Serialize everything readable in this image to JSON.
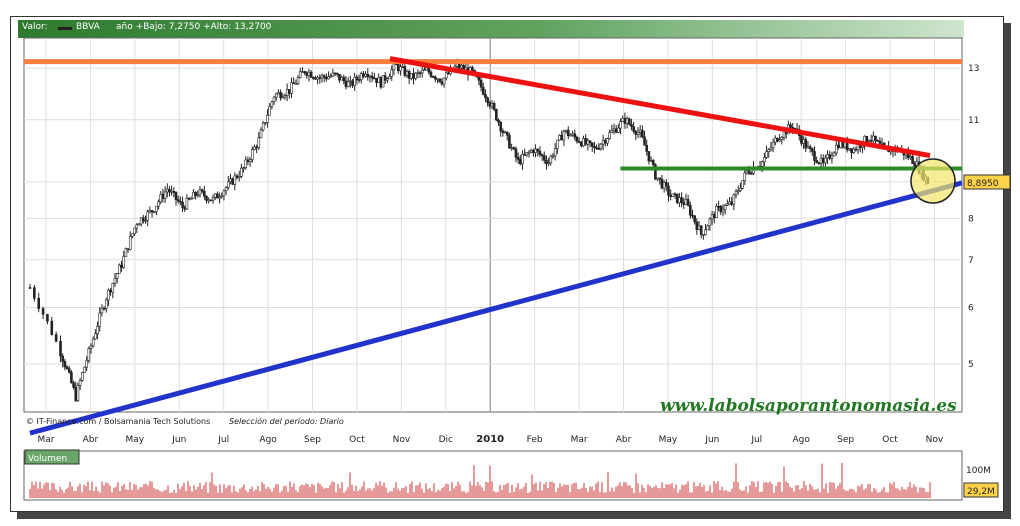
{
  "header": {
    "valor_label": "Valor:",
    "ticker": "BBVA",
    "range_text": "año +Bajo: 7,2750 +Alto: 13,2700"
  },
  "footer": {
    "credit": "© IT-Finance.com / Bolsamania Tech Solutions",
    "period": "Selección del período: Diario"
  },
  "watermark": "www.labolsaporantonomasia.es",
  "price_tag": "8,8950",
  "volume_panel": {
    "label": "Volumen",
    "scale_label": "100M",
    "last_volume": "29,2M"
  },
  "colors": {
    "header": "#3a853a",
    "candles": "#222222",
    "resistance_line": "#ee1111",
    "support_line": "#2233cc",
    "high_level": "#ff7f3f",
    "support_level": "#2a8a2a",
    "highlight": "#f3e56a",
    "volume": "#cc3333",
    "watermark": "#227722",
    "price_tag": "#ffd24a"
  },
  "chart_data": {
    "type": "candlestick",
    "title": "BBVA",
    "ylabel": "",
    "xlabel": "",
    "y_scale": "log",
    "ylim": [
      4.3,
      13.8
    ],
    "yticks": [
      5,
      6,
      7,
      8,
      9,
      11,
      13
    ],
    "x_labels": [
      "Mar",
      "Abr",
      "May",
      "Jun",
      "Jul",
      "Ago",
      "Sep",
      "Oct",
      "Nov",
      "Dic",
      "2010",
      "Feb",
      "Mar",
      "Abr",
      "May",
      "Jun",
      "Jul",
      "Ago",
      "Sep",
      "Oct",
      "Nov"
    ],
    "low": 7.275,
    "high": 13.27,
    "last": 8.895,
    "price_path": [
      [
        0,
        6.4
      ],
      [
        2,
        5.2
      ],
      [
        3,
        4.5
      ],
      [
        4,
        5.3
      ],
      [
        5,
        6.2
      ],
      [
        6,
        6.9
      ],
      [
        7,
        7.9
      ],
      [
        8,
        8.2
      ],
      [
        9,
        8.8
      ],
      [
        10,
        8.3
      ],
      [
        11,
        8.7
      ],
      [
        12,
        8.5
      ],
      [
        13,
        8.9
      ],
      [
        14,
        9.4
      ],
      [
        15,
        10.3
      ],
      [
        16,
        11.9
      ],
      [
        17,
        12.1
      ],
      [
        18,
        12.9
      ],
      [
        19,
        12.6
      ],
      [
        20,
        12.7
      ],
      [
        21,
        12.3
      ],
      [
        22,
        12.9
      ],
      [
        23,
        12.4
      ],
      [
        24,
        13.1
      ],
      [
        25,
        12.6
      ],
      [
        26,
        12.9
      ],
      [
        27,
        12.5
      ],
      [
        28,
        13.1
      ],
      [
        29,
        12.8
      ],
      [
        30,
        11.8
      ],
      [
        31,
        10.6
      ],
      [
        32,
        9.6
      ],
      [
        33,
        10.0
      ],
      [
        34,
        9.6
      ],
      [
        35,
        10.6
      ],
      [
        36,
        10.3
      ],
      [
        37,
        10.0
      ],
      [
        38,
        10.5
      ],
      [
        39,
        11.0
      ],
      [
        40,
        10.5
      ],
      [
        41,
        9.2
      ],
      [
        42,
        8.6
      ],
      [
        43,
        8.4
      ],
      [
        44,
        7.6
      ],
      [
        45,
        8.2
      ],
      [
        46,
        8.4
      ],
      [
        47,
        9.3
      ],
      [
        48,
        9.6
      ],
      [
        49,
        10.4
      ],
      [
        50,
        10.8
      ],
      [
        51,
        10.0
      ],
      [
        52,
        9.5
      ],
      [
        53,
        10.2
      ],
      [
        54,
        10.0
      ],
      [
        55,
        10.4
      ],
      [
        56,
        10.0
      ],
      [
        57,
        10.0
      ],
      [
        58,
        9.6
      ],
      [
        59,
        8.9
      ]
    ],
    "volume": "see series",
    "series": [
      {
        "name": "Máximo",
        "type": "hline",
        "y": 13.27
      },
      {
        "name": "Resistencia",
        "type": "trendline",
        "points": [
          [
            10,
            13.4
          ],
          [
            25,
            9.8
          ]
        ]
      },
      {
        "name": "Soporte",
        "type": "trendline",
        "points": [
          [
            0,
            4.35
          ],
          [
            25,
            8.8
          ]
        ]
      },
      {
        "name": "Soporte horizontal",
        "type": "hline",
        "y": 9.4,
        "x_range": [
          16.4,
          25
        ]
      }
    ]
  }
}
